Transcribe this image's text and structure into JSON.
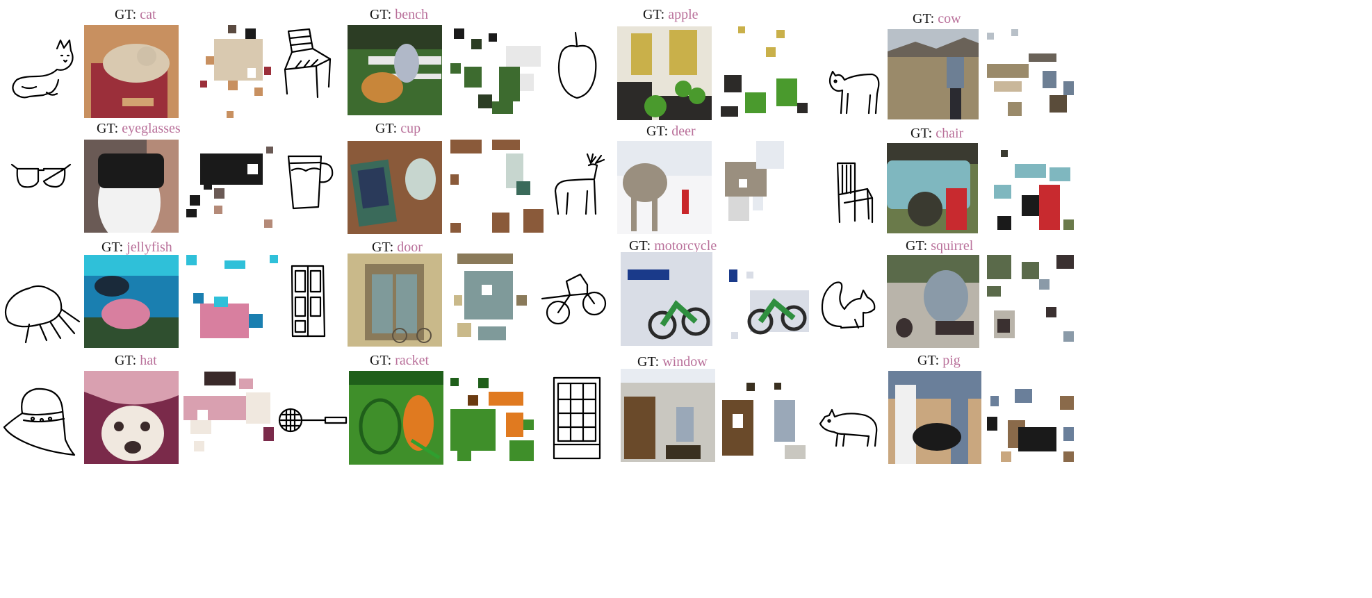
{
  "gt_prefix": "GT:",
  "accent": "#b9709a",
  "rows": [
    [
      {
        "sketch": "cat-sketch-icon",
        "label": "cat",
        "palette": [
          "#c89060",
          "#9b2f3a",
          "#d9c9b0",
          "#5a4a40"
        ]
      },
      {
        "sketch": "bench-sketch-icon",
        "label": "bench",
        "palette": [
          "#3d6b2f",
          "#e8e8e8",
          "#c8863a",
          "#2c3d24"
        ]
      },
      {
        "sketch": "apple-sketch-icon",
        "label": "apple",
        "palette": [
          "#c9b04a",
          "#4a9a2d",
          "#e8e4d8",
          "#2c2a28"
        ]
      },
      {
        "sketch": "cow-sketch-icon",
        "label": "cow",
        "palette": [
          "#9a8a6a",
          "#6d7f94",
          "#c9b79a",
          "#5a4c3a"
        ]
      }
    ],
    [
      {
        "sketch": "eyeglasses-sketch-icon",
        "label": "eyeglasses",
        "palette": [
          "#1a1a1a",
          "#f2f2f2",
          "#b48a78",
          "#6a5a55"
        ]
      },
      {
        "sketch": "cup-sketch-icon",
        "label": "cup",
        "palette": [
          "#8a5a3a",
          "#3a6a5a",
          "#c7d6cf",
          "#2a2a2a"
        ]
      },
      {
        "sketch": "deer-sketch-icon",
        "label": "deer",
        "palette": [
          "#e6eaf0",
          "#9a8f7f",
          "#c9262a",
          "#f5f5f7"
        ]
      },
      {
        "sketch": "chair-sketch-icon",
        "label": "chair",
        "palette": [
          "#7fb7bf",
          "#c82a2f",
          "#3a3a30",
          "#6a7a4a"
        ]
      }
    ],
    [
      {
        "sketch": "jellyfish-sketch-icon",
        "label": "jellyfish",
        "palette": [
          "#1a7fb0",
          "#2fc0d9",
          "#d87f9f",
          "#2f4f2f"
        ]
      },
      {
        "sketch": "door-sketch-icon",
        "label": "door",
        "palette": [
          "#8a7a5a",
          "#7f9a9a",
          "#c9b98a",
          "#5a5040"
        ]
      },
      {
        "sketch": "motorcycle-sketch-icon",
        "label": "motorcycle",
        "palette": [
          "#d9dde6",
          "#2f8f3f",
          "#1a3a8a",
          "#2a2a2a"
        ]
      },
      {
        "sketch": "squirrel-sketch-icon",
        "label": "squirrel",
        "palette": [
          "#8a9aa8",
          "#5a6a4a",
          "#3a3030",
          "#b9b4aa"
        ]
      }
    ],
    [
      {
        "sketch": "hat-sketch-icon",
        "label": "hat",
        "palette": [
          "#d9a0b0",
          "#f0e8df",
          "#3a2a2a",
          "#7a2a4a"
        ]
      },
      {
        "sketch": "racket-sketch-icon",
        "label": "racket",
        "palette": [
          "#3f8f2a",
          "#e07a20",
          "#1f5f1a",
          "#6a3a10"
        ]
      },
      {
        "sketch": "window-sketch-icon",
        "label": "window",
        "palette": [
          "#c9c7c0",
          "#6a4a2a",
          "#9aa8b8",
          "#3a3020"
        ]
      },
      {
        "sketch": "pig-sketch-icon",
        "label": "pig",
        "palette": [
          "#1a1a1a",
          "#c9a77f",
          "#6a7f9a",
          "#8a6a4a"
        ]
      }
    ]
  ]
}
